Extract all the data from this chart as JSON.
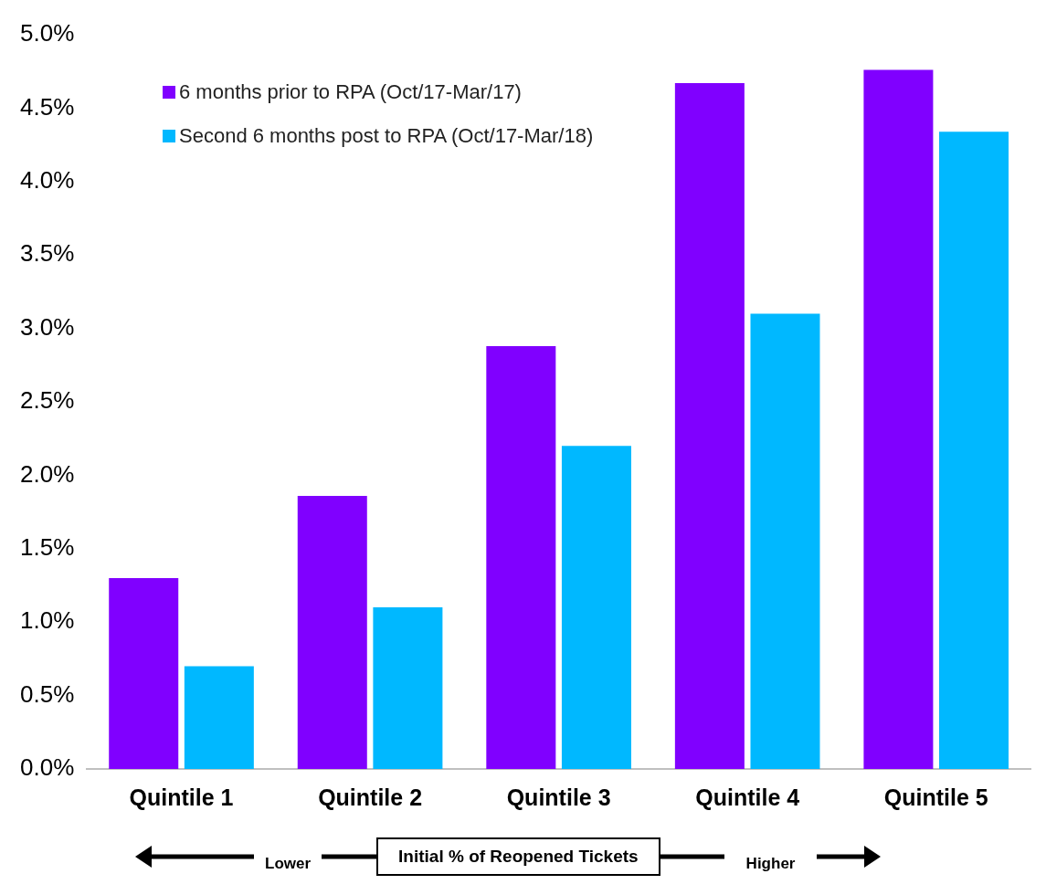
{
  "chart_data": {
    "type": "bar",
    "categories": [
      "Quintile 1",
      "Quintile 2",
      "Quintile 3",
      "Quintile 4",
      "Quintile 5"
    ],
    "series": [
      {
        "name": "6 months prior to RPA (Oct/17-Mar/17)",
        "color": "#8000ff",
        "values": [
          1.3,
          1.86,
          2.88,
          4.67,
          4.76
        ]
      },
      {
        "name": "Second 6 months post to RPA (Oct/17-Mar/18)",
        "color": "#00b8ff",
        "values": [
          0.7,
          1.1,
          2.2,
          3.1,
          4.34
        ]
      }
    ],
    "ylim": [
      0,
      5
    ],
    "yticks": [
      {
        "value": 0,
        "label": "0.0%"
      },
      {
        "value": 0.5,
        "label": "0.5%"
      },
      {
        "value": 1,
        "label": "1.0%"
      },
      {
        "value": 1.5,
        "label": "1.5%"
      },
      {
        "value": 2,
        "label": "2.0%"
      },
      {
        "value": 2.5,
        "label": "2.5%"
      },
      {
        "value": 3,
        "label": "3.0%"
      },
      {
        "value": 3.5,
        "label": "3.5%"
      },
      {
        "value": 4,
        "label": "4.0%"
      },
      {
        "value": 4.5,
        "label": "4.5%"
      },
      {
        "value": 5,
        "label": "5.0%"
      }
    ],
    "xlabel": "Initial % of Reopened Tickets",
    "annotations": [
      "Lower",
      "Higher"
    ],
    "legend": "top left",
    "grid": false
  }
}
